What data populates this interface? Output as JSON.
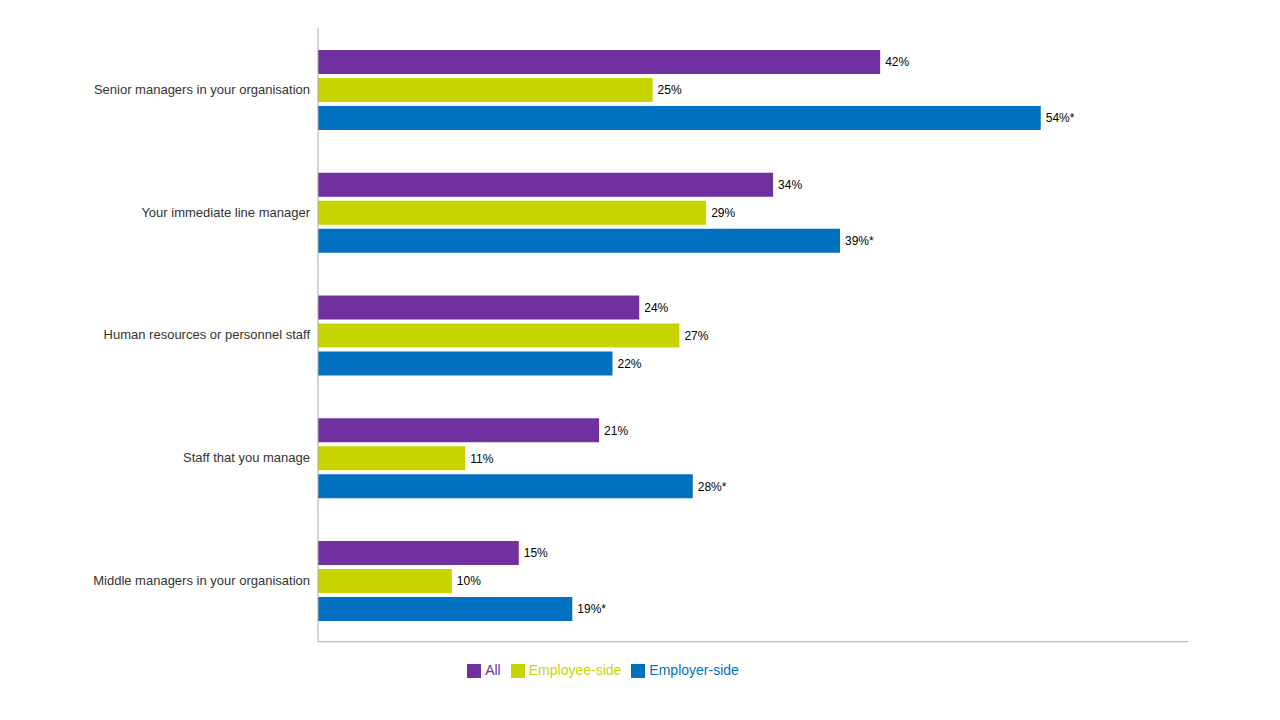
{
  "chart_data": {
    "type": "bar",
    "orientation": "horizontal",
    "categories": [
      "Senior managers in your organisation",
      "Your immediate line manager",
      "Human resources or personnel staff",
      "Staff that you manage",
      "Middle managers in your organisation"
    ],
    "series": [
      {
        "name": "All",
        "color": "#7030a0",
        "values": [
          42,
          34,
          24,
          21,
          15
        ],
        "value_labels": [
          "42%",
          "34%",
          "24%",
          "21%",
          "15%"
        ]
      },
      {
        "name": "Employee-side",
        "color": "#c8d400",
        "values": [
          25,
          29,
          27,
          11,
          10
        ],
        "value_labels": [
          "25%",
          "29%",
          "27%",
          "11%",
          "10%"
        ]
      },
      {
        "name": "Employer-side",
        "color": "#0070c0",
        "values": [
          54,
          39,
          22,
          28,
          19
        ],
        "value_labels": [
          "54%*",
          "39%*",
          "22%",
          "28%*",
          "19%*"
        ]
      }
    ],
    "xlim": [
      0,
      65
    ],
    "legend": "bottom",
    "tick_labels": "y",
    "data_labels": true,
    "grid": false
  }
}
